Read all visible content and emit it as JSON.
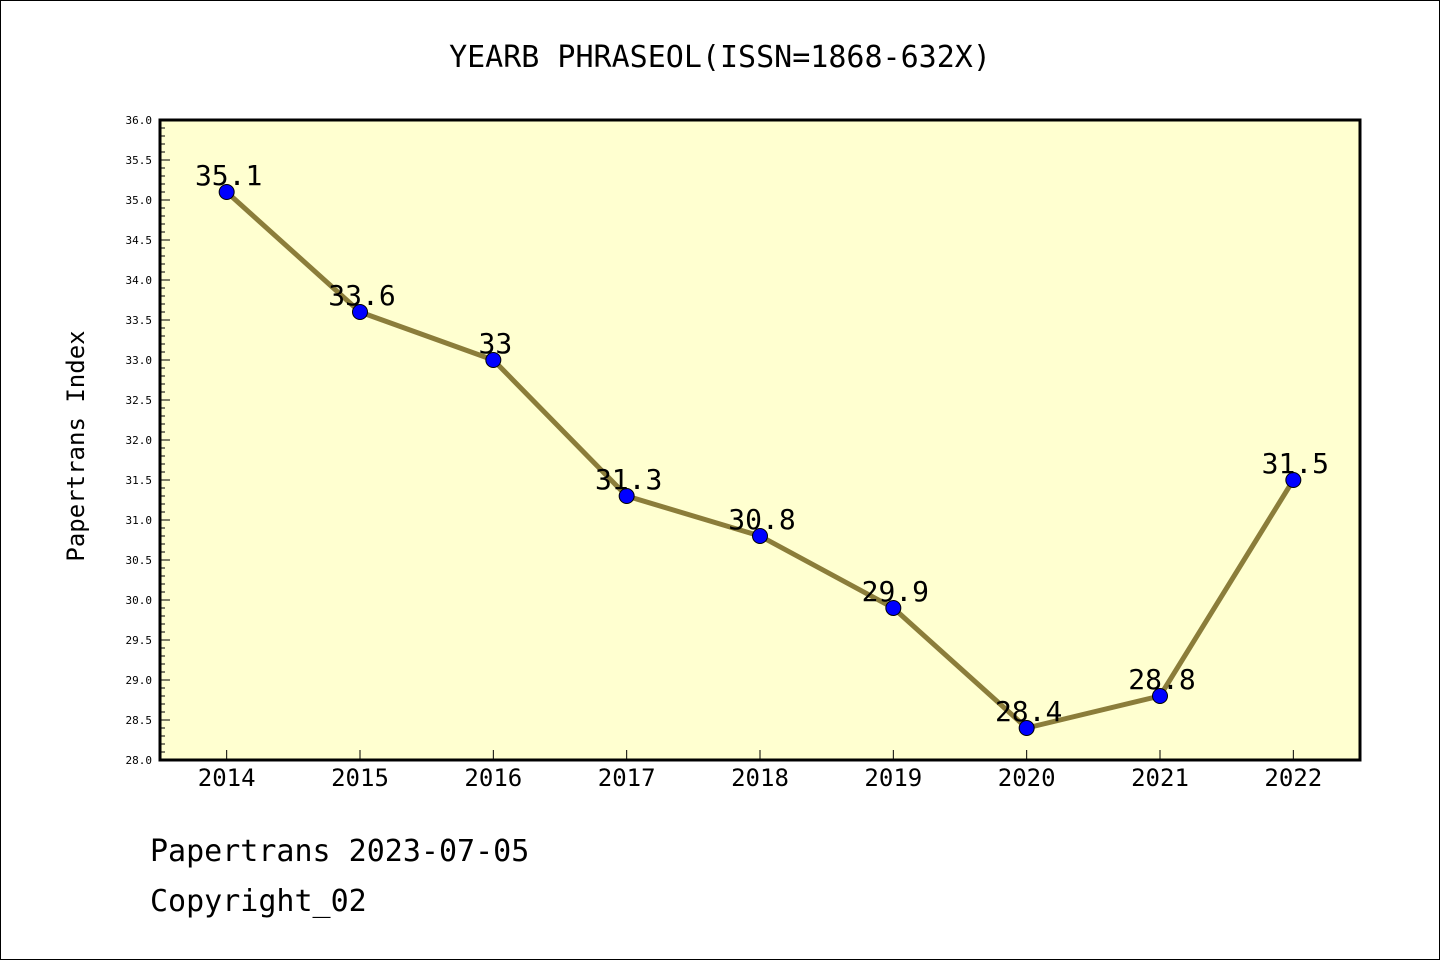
{
  "footer": {
    "line1": "Papertrans 2023-07-05",
    "line2": "Copyright_02"
  },
  "chart_data": {
    "type": "line",
    "title": "YEARB PHRASEOL(ISSN=1868-632X)",
    "xlabel": "",
    "ylabel": "Papertrans Index",
    "categories": [
      "2014",
      "2015",
      "2016",
      "2017",
      "2018",
      "2019",
      "2020",
      "2021",
      "2022"
    ],
    "series": [
      {
        "values": [
          35.1,
          33.6,
          33,
          31.3,
          30.8,
          29.9,
          28.4,
          28.8,
          31.5
        ],
        "labels": [
          "35.1",
          "33.6",
          "33",
          "31.3",
          "30.8",
          "29.9",
          "28.4",
          "28.8",
          "31.5"
        ],
        "line_color": "#8b7d3a",
        "marker_color": "#0000ff"
      }
    ],
    "ylim": [
      28.0,
      36.0
    ],
    "yticks": [
      "28.0",
      "28.5",
      "29.0",
      "29.5",
      "30.0",
      "30.5",
      "31.0",
      "31.5",
      "32.0",
      "32.5",
      "33.0",
      "33.5",
      "34.0",
      "34.5",
      "35.0",
      "35.5",
      "36.0"
    ],
    "y_minor_step": 0.1,
    "grid": false,
    "legend": "none",
    "plot_background": "#ffffd0"
  }
}
